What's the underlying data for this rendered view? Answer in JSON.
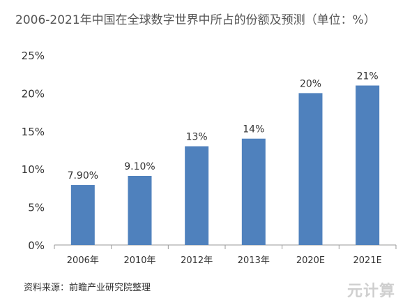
{
  "chart_data": {
    "type": "bar",
    "title": "2006-2021年中国在全球数字世界中所占的份额及预测（单位：%）",
    "categories": [
      "2006年",
      "2010年",
      "2012年",
      "2013年",
      "2020E",
      "2021E"
    ],
    "values": [
      7.9,
      9.1,
      13,
      14,
      20,
      21
    ],
    "data_labels": [
      "7.90%",
      "9.10%",
      "13%",
      "14%",
      "20%",
      "21%"
    ],
    "y_ticks": [
      "0%",
      "5%",
      "10%",
      "15%",
      "20%",
      "25%"
    ],
    "ylim": [
      0,
      25
    ],
    "xlabel": "",
    "ylabel": "",
    "bar_color": "#4f81bd",
    "grid": false,
    "legend": "none"
  },
  "source": "资料来源：前瞻产业研究院整理",
  "watermark": "元计算"
}
